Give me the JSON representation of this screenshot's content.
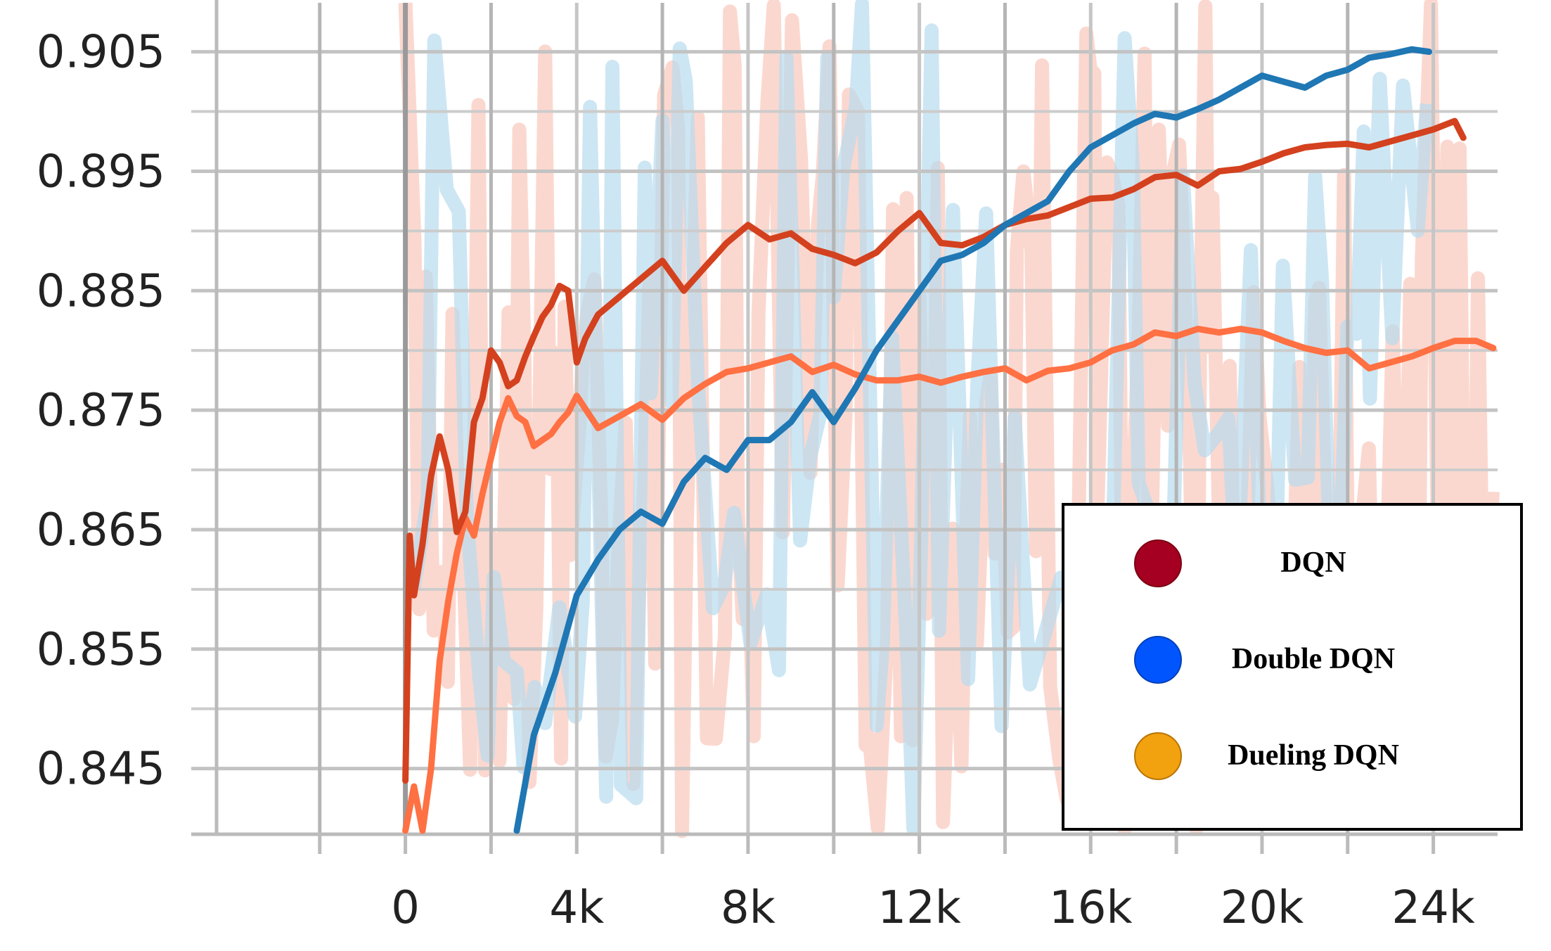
{
  "chart_data": {
    "type": "line",
    "title": "",
    "xlabel": "",
    "ylabel": "",
    "xlim": [
      -5000,
      25500
    ],
    "ylim": [
      0.8395,
      0.9091
    ],
    "x_ticks": [
      0,
      4000,
      8000,
      12000,
      16000,
      20000,
      24000
    ],
    "x_tick_labels": [
      "0",
      "4k",
      "8k",
      "12k",
      "16k",
      "20k",
      "24k"
    ],
    "y_ticks": [
      0.845,
      0.855,
      0.865,
      0.875,
      0.885,
      0.895,
      0.905
    ],
    "y_tick_labels": [
      "0.845",
      "0.855",
      "0.865",
      "0.875",
      "0.885",
      "0.895",
      "0.905"
    ],
    "grid": true,
    "legend_position": "bottom-right",
    "colors": {
      "dqn": "#d4411e",
      "double_dqn": "#1f77b4",
      "dueling_dqn": "#ff7043",
      "dqn_marker": "#a50021",
      "double_dqn_marker": "#0055ff",
      "dueling_dqn_marker": "#f2a10f",
      "raw_red": "#f9c7bb",
      "raw_blue": "#b8dcee"
    },
    "series": [
      {
        "name": "DQN",
        "x": [
          0,
          100,
          200,
          400,
          600,
          800,
          1000,
          1200,
          1400,
          1600,
          1800,
          2000,
          2200,
          2400,
          2600,
          2800,
          3000,
          3200,
          3400,
          3600,
          3800,
          4000,
          4200,
          4500,
          5000,
          5500,
          6000,
          6500,
          7000,
          7500,
          8000,
          8500,
          9000,
          9500,
          10000,
          10500,
          11000,
          11500,
          12000,
          12500,
          13000,
          13500,
          14000,
          14500,
          15000,
          15500,
          16000,
          16500,
          17000,
          17500,
          18000,
          18500,
          19000,
          19500,
          20000,
          20500,
          21000,
          21500,
          22000,
          22500,
          23000,
          23500,
          24000,
          24500,
          24700
        ],
        "values": [
          0.844,
          0.8645,
          0.8595,
          0.8638,
          0.8695,
          0.8728,
          0.87,
          0.8648,
          0.8665,
          0.874,
          0.876,
          0.88,
          0.879,
          0.877,
          0.8775,
          0.8795,
          0.8812,
          0.8828,
          0.8838,
          0.8854,
          0.885,
          0.879,
          0.881,
          0.883,
          0.8845,
          0.886,
          0.8875,
          0.885,
          0.887,
          0.889,
          0.8905,
          0.8893,
          0.8898,
          0.8885,
          0.888,
          0.8873,
          0.8882,
          0.89,
          0.8915,
          0.889,
          0.8888,
          0.8895,
          0.8905,
          0.891,
          0.8913,
          0.892,
          0.8927,
          0.8928,
          0.8935,
          0.8945,
          0.8947,
          0.8938,
          0.895,
          0.8952,
          0.8958,
          0.8965,
          0.897,
          0.8972,
          0.8973,
          0.897,
          0.8975,
          0.898,
          0.8985,
          0.8992,
          0.8978
        ]
      },
      {
        "name": "Double DQN",
        "x": [
          2600,
          3000,
          3500,
          4000,
          4500,
          5000,
          5500,
          6000,
          6500,
          7000,
          7500,
          8000,
          8500,
          9000,
          9500,
          10000,
          10500,
          11000,
          11500,
          12000,
          12500,
          13000,
          13500,
          14000,
          14500,
          15000,
          15500,
          16000,
          16500,
          17000,
          17500,
          18000,
          18500,
          19000,
          19500,
          20000,
          20500,
          21000,
          21500,
          22000,
          22500,
          23000,
          23500,
          23900
        ],
        "values": [
          0.8398,
          0.8478,
          0.853,
          0.8595,
          0.8625,
          0.865,
          0.8665,
          0.8655,
          0.869,
          0.871,
          0.87,
          0.8725,
          0.8725,
          0.874,
          0.8765,
          0.874,
          0.8768,
          0.88,
          0.8825,
          0.885,
          0.8875,
          0.888,
          0.889,
          0.8905,
          0.8915,
          0.8925,
          0.895,
          0.897,
          0.898,
          0.899,
          0.8998,
          0.8995,
          0.9002,
          0.901,
          0.902,
          0.903,
          0.9025,
          0.902,
          0.903,
          0.9035,
          0.9045,
          0.9048,
          0.9052,
          0.905
        ]
      },
      {
        "name": "Dueling DQN",
        "x": [
          0,
          200,
          400,
          600,
          800,
          1000,
          1200,
          1400,
          1600,
          1800,
          2000,
          2200,
          2400,
          2600,
          2800,
          3000,
          3200,
          3400,
          3600,
          3800,
          4000,
          4500,
          5000,
          5500,
          6000,
          6500,
          7000,
          7500,
          8000,
          8500,
          9000,
          9500,
          10000,
          10500,
          11000,
          11500,
          12000,
          12500,
          13000,
          13500,
          14000,
          14500,
          15000,
          15500,
          16000,
          16500,
          17000,
          17500,
          18000,
          18500,
          19000,
          19500,
          20000,
          20500,
          21000,
          21500,
          22000,
          22500,
          23000,
          23500,
          24000,
          24500,
          25000,
          25400
        ],
        "values": [
          0.8398,
          0.8435,
          0.8398,
          0.845,
          0.854,
          0.859,
          0.863,
          0.866,
          0.8645,
          0.868,
          0.871,
          0.874,
          0.876,
          0.8745,
          0.874,
          0.872,
          0.8725,
          0.873,
          0.874,
          0.8748,
          0.8762,
          0.8735,
          0.8745,
          0.8755,
          0.8742,
          0.876,
          0.8772,
          0.8782,
          0.8785,
          0.879,
          0.8795,
          0.8782,
          0.8788,
          0.878,
          0.8775,
          0.8775,
          0.8778,
          0.8773,
          0.8778,
          0.8782,
          0.8785,
          0.8775,
          0.8783,
          0.8785,
          0.879,
          0.88,
          0.8805,
          0.8815,
          0.8812,
          0.8818,
          0.8815,
          0.8818,
          0.8815,
          0.8808,
          0.8802,
          0.8798,
          0.88,
          0.8785,
          0.879,
          0.8795,
          0.8802,
          0.8808,
          0.8808,
          0.8802
        ]
      }
    ]
  },
  "legend": {
    "items": [
      {
        "label": "DQN"
      },
      {
        "label": "Double DQN"
      },
      {
        "label": "Dueling DQN"
      }
    ]
  }
}
